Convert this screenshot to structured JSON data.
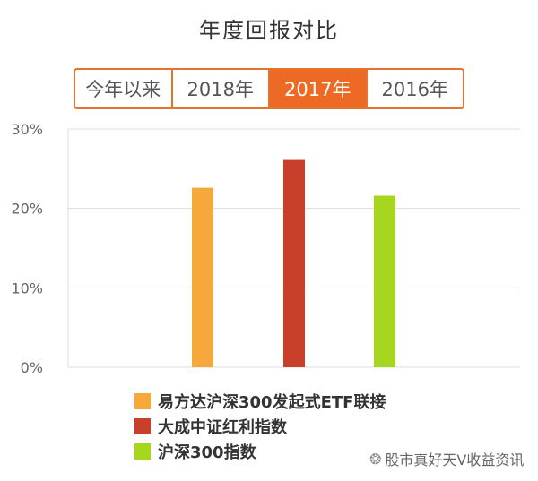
{
  "tabs": [
    {
      "label": "今年以来",
      "active": false
    },
    {
      "label": "2018年",
      "active": false
    },
    {
      "label": "2017年",
      "active": true
    },
    {
      "label": "2016年",
      "active": false
    }
  ],
  "watermark": {
    "text": "股市真好天V收益资讯"
  },
  "chart_data": {
    "type": "bar",
    "title": "年度回报对比",
    "xlabel": "",
    "ylabel": "",
    "ylim": [
      0,
      30
    ],
    "yticks": [
      0,
      10,
      20,
      30
    ],
    "ytick_labels": [
      "0%",
      "10%",
      "20%",
      "30%"
    ],
    "grid": true,
    "legend_position": "bottom-left",
    "series": [
      {
        "name": "易方达沪深300发起式ETF联接",
        "value": 22.6,
        "color": "#f5a93a"
      },
      {
        "name": "大成中证红利指数",
        "value": 26.1,
        "color": "#c8402a"
      },
      {
        "name": "沪深300指数",
        "value": 21.6,
        "color": "#a6d61e"
      }
    ]
  }
}
